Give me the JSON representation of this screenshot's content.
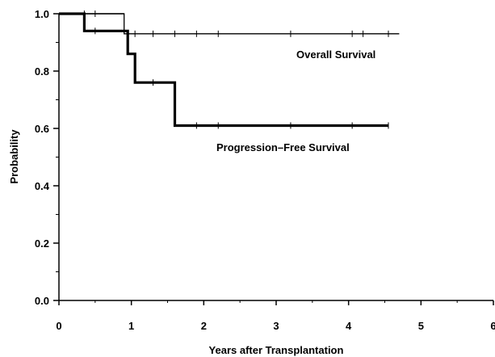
{
  "chart_data": {
    "type": "line",
    "step": true,
    "xlabel": "Years after Transplantation",
    "ylabel": "Probability",
    "xlim": [
      0,
      6
    ],
    "ylim": [
      0,
      1
    ],
    "x_ticks": [
      "0",
      "1",
      "2",
      "3",
      "4",
      "5",
      "6"
    ],
    "y_ticks": [
      "0.0",
      "0.2",
      "0.4",
      "0.6",
      "0.8",
      "1.0"
    ],
    "grid": false,
    "series": [
      {
        "name": "Overall Survival",
        "line_style": "thin",
        "steps": [
          [
            0,
            1.0
          ],
          [
            0.9,
            1.0
          ],
          [
            0.9,
            0.93
          ],
          [
            4.7,
            0.93
          ]
        ],
        "censored": [
          0.35,
          0.5,
          1.05,
          1.3,
          1.6,
          1.9,
          2.2,
          3.2,
          4.05,
          4.2,
          4.55
        ]
      },
      {
        "name": "Progression–Free Survival",
        "line_style": "thick",
        "steps": [
          [
            0,
            1.0
          ],
          [
            0.35,
            1.0
          ],
          [
            0.35,
            0.94
          ],
          [
            0.95,
            0.94
          ],
          [
            0.95,
            0.86
          ],
          [
            1.05,
            0.86
          ],
          [
            1.05,
            0.76
          ],
          [
            1.6,
            0.76
          ],
          [
            1.6,
            0.61
          ],
          [
            4.55,
            0.61
          ]
        ],
        "censored": [
          0.5,
          1.3,
          1.9,
          2.2,
          3.2,
          4.05,
          4.55
        ]
      }
    ]
  }
}
